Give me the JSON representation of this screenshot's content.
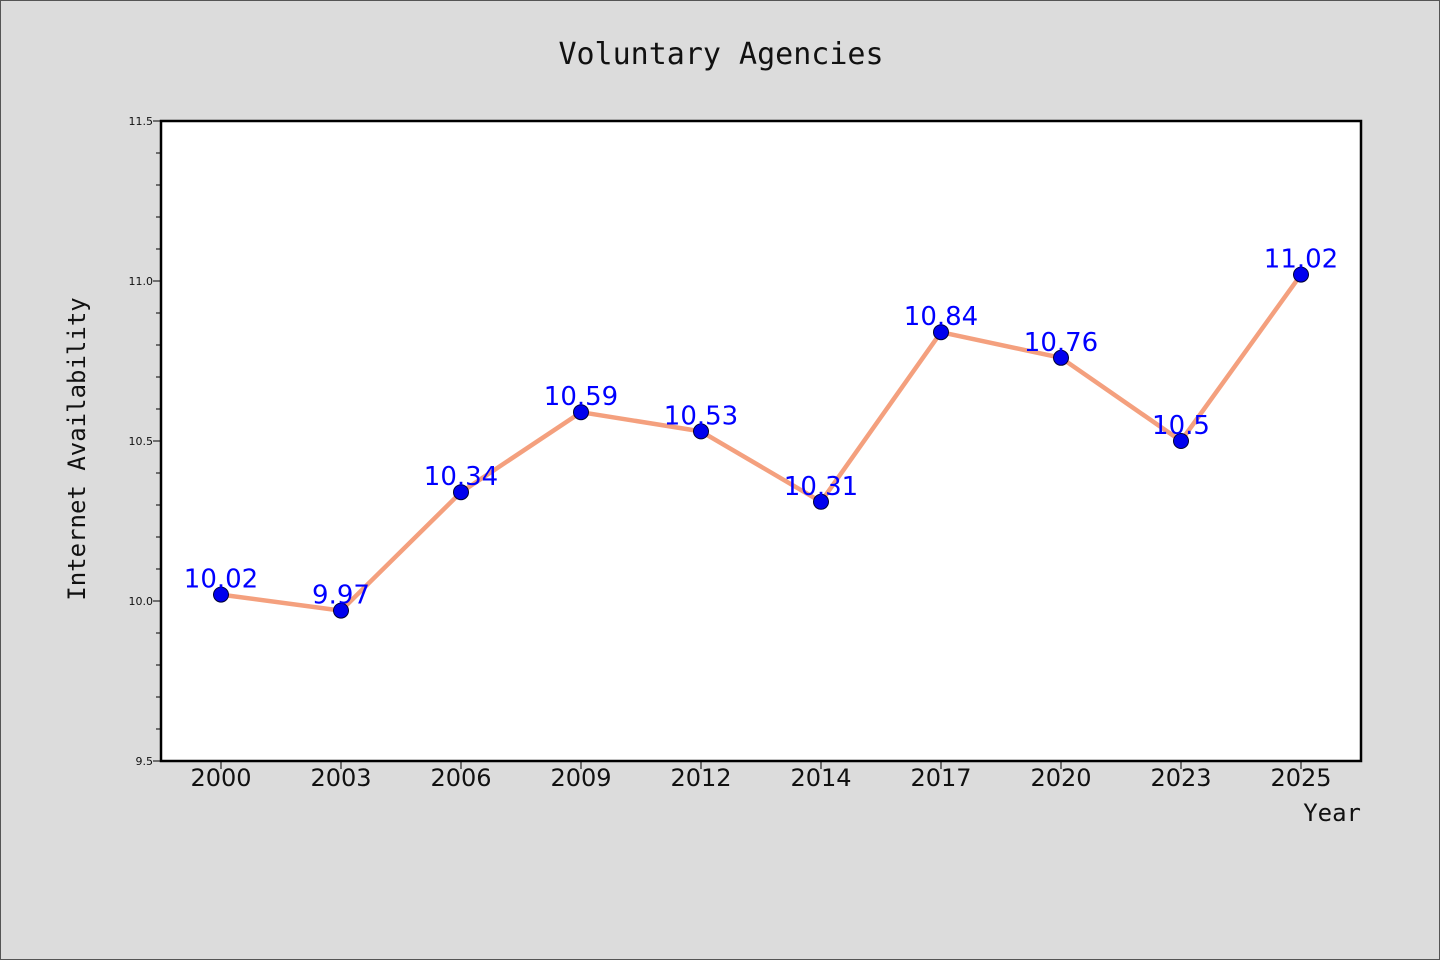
{
  "chart_data": {
    "type": "line",
    "title": "Voluntary Agencies",
    "xlabel": "Year",
    "ylabel": "Internet Availability",
    "categories": [
      "2000",
      "2003",
      "2006",
      "2009",
      "2012",
      "2014",
      "2017",
      "2020",
      "2023",
      "2025"
    ],
    "series": [
      {
        "values": [
          10.02,
          9.97,
          10.34,
          10.59,
          10.53,
          10.31,
          10.84,
          10.76,
          10.5,
          11.02
        ]
      }
    ],
    "data_labels": [
      "10.02",
      "9.97",
      "10.34",
      "10.59",
      "10.53",
      "10.31",
      "10.84",
      "10.76",
      "10.5",
      "11.02"
    ],
    "ylim": [
      9.5,
      11.5
    ],
    "y_ticks": [
      "9.5",
      "10.0",
      "10.5",
      "11.0",
      "11.5"
    ],
    "grid": false,
    "legend": "none",
    "colors": {
      "line": "#f4a07e",
      "marker": "#0000ee",
      "label": "#0000ff",
      "background": "#dcdcdc",
      "plot_background": "#ffffff"
    }
  }
}
